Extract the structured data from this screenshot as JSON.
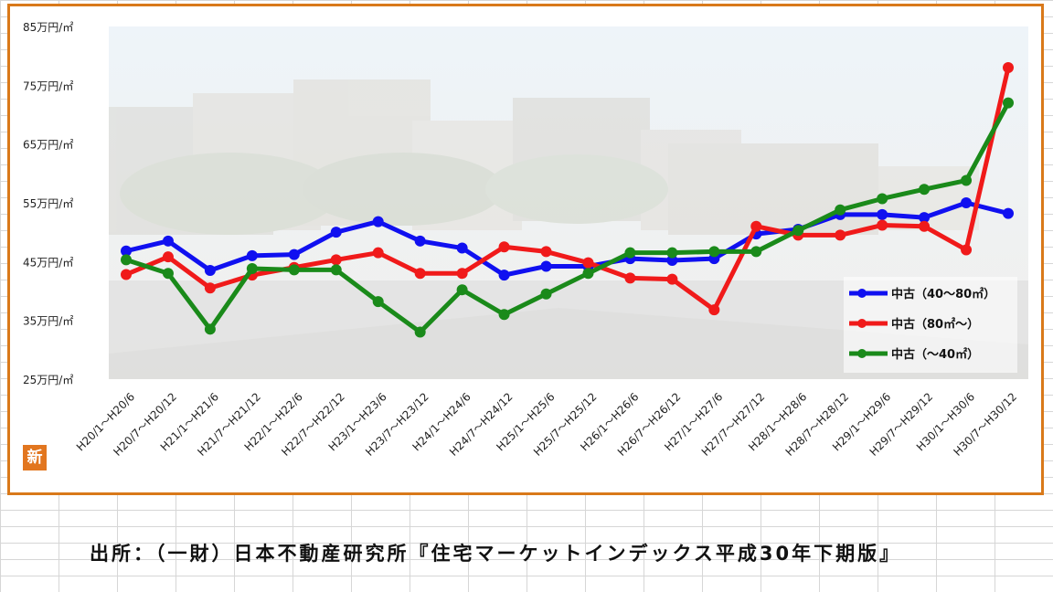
{
  "chart_data": {
    "type": "line",
    "title": "",
    "xlabel": "",
    "ylabel": "",
    "ylim": [
      25,
      85
    ],
    "y_tick_values": [
      25,
      35,
      45,
      55,
      65,
      75,
      85
    ],
    "y_tick_labels": [
      "25万円/㎡",
      "35万円/㎡",
      "45万円/㎡",
      "55万円/㎡",
      "65万円/㎡",
      "75万円/㎡",
      "85万円/㎡"
    ],
    "categories": [
      "H20/1～H20/6",
      "H20/7～H20/12",
      "H21/1～H21/6",
      "H21/7～H21/12",
      "H22/1～H22/6",
      "H22/7～H22/12",
      "H23/1～H23/6",
      "H23/7～H23/12",
      "H24/1～H24/6",
      "H24/7～H24/12",
      "H25/1～H25/6",
      "H25/7～H25/12",
      "H26/1～H26/6",
      "H26/7～H26/12",
      "H27/1～H27/6",
      "H27/7～H27/12",
      "H28/1～H28/6",
      "H28/7～H28/12",
      "H29/1～H29/6",
      "H29/7～H29/12",
      "H30/1～H30/6",
      "H30/7～H30/12"
    ],
    "grid": false,
    "legend_position": "right",
    "series": [
      {
        "name": "中古（40～80㎡）",
        "color": "#1010f0",
        "values": [
          46.8,
          48.5,
          43.5,
          46.0,
          46.2,
          50.0,
          51.8,
          48.5,
          47.3,
          42.7,
          44.2,
          44.2,
          45.5,
          45.2,
          45.5,
          49.7,
          50.5,
          53.0,
          53.0,
          52.5,
          55.0,
          53.2
        ]
      },
      {
        "name": "中古（80㎡～）",
        "color": "#f01a1a",
        "values": [
          42.8,
          45.8,
          40.5,
          42.7,
          44.0,
          45.3,
          46.5,
          43.0,
          43.0,
          47.5,
          46.7,
          44.8,
          42.2,
          42.0,
          36.8,
          51.0,
          49.5,
          49.5,
          51.2,
          51.0,
          47.0,
          78.0
        ]
      },
      {
        "name": "中古（～40㎡）",
        "color": "#1a8a1a",
        "values": [
          45.3,
          43.0,
          33.5,
          43.8,
          43.6,
          43.6,
          38.2,
          33.0,
          40.2,
          36.0,
          39.5,
          43.0,
          46.5,
          46.5,
          46.7,
          46.7,
          50.3,
          53.8,
          55.7,
          57.3,
          58.8,
          72.0
        ]
      }
    ]
  },
  "source_note": "出所：（一財）日本不動産研究所『住宅マーケットインデックス平成30年下期版』",
  "logo_text": "新"
}
